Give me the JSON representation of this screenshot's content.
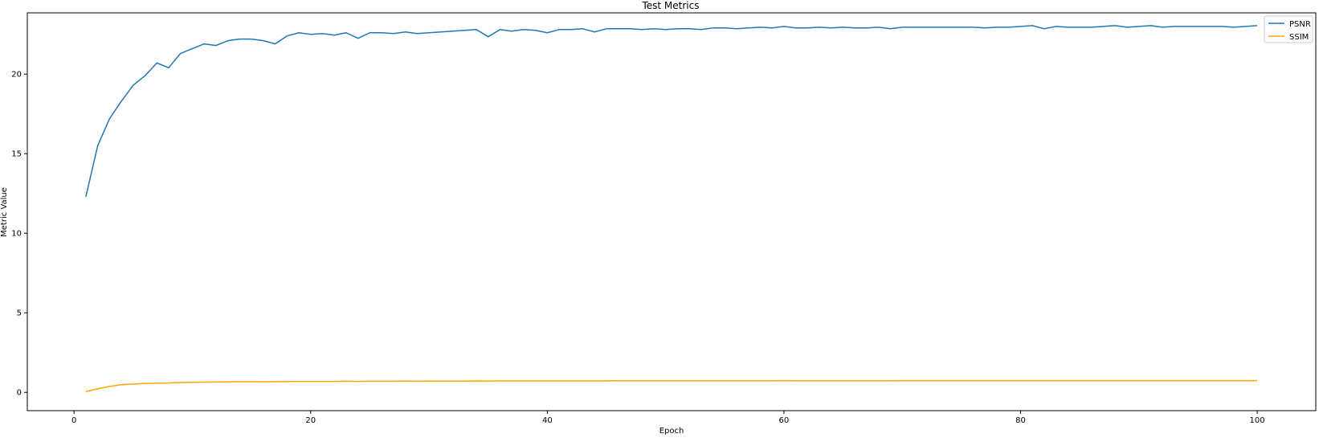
{
  "chart_data": {
    "type": "line",
    "title": "Test Metrics",
    "xlabel": "Epoch",
    "ylabel": "Metric Value",
    "xlim": [
      -3.95,
      104.95
    ],
    "ylim": [
      -1.15,
      23.85
    ],
    "xticks": [
      0,
      20,
      40,
      60,
      80,
      100
    ],
    "yticks": [
      0,
      5,
      10,
      15,
      20
    ],
    "grid": false,
    "legend_position": "top-right",
    "series": [
      {
        "name": "PSNR",
        "color": "#1f77b4",
        "x": [
          1,
          2,
          3,
          4,
          5,
          6,
          7,
          8,
          9,
          10,
          11,
          12,
          13,
          14,
          15,
          16,
          17,
          18,
          19,
          20,
          21,
          22,
          23,
          24,
          25,
          26,
          27,
          28,
          29,
          30,
          31,
          32,
          33,
          34,
          35,
          36,
          37,
          38,
          39,
          40,
          41,
          42,
          43,
          44,
          45,
          46,
          47,
          48,
          49,
          50,
          51,
          52,
          53,
          54,
          55,
          56,
          57,
          58,
          59,
          60,
          61,
          62,
          63,
          64,
          65,
          66,
          67,
          68,
          69,
          70,
          71,
          72,
          73,
          74,
          75,
          76,
          77,
          78,
          79,
          80,
          81,
          82,
          83,
          84,
          85,
          86,
          87,
          88,
          89,
          90,
          91,
          92,
          93,
          94,
          95,
          96,
          97,
          98,
          99,
          100
        ],
        "values": [
          12.3,
          15.5,
          17.2,
          18.3,
          19.3,
          19.9,
          20.7,
          20.4,
          21.3,
          21.6,
          21.9,
          21.8,
          22.1,
          22.2,
          22.2,
          22.1,
          21.9,
          22.4,
          22.6,
          22.5,
          22.55,
          22.45,
          22.6,
          22.25,
          22.6,
          22.6,
          22.55,
          22.65,
          22.55,
          22.6,
          22.65,
          22.7,
          22.75,
          22.8,
          22.35,
          22.8,
          22.7,
          22.8,
          22.75,
          22.6,
          22.8,
          22.8,
          22.85,
          22.65,
          22.85,
          22.85,
          22.85,
          22.8,
          22.85,
          22.8,
          22.85,
          22.85,
          22.8,
          22.9,
          22.9,
          22.85,
          22.9,
          22.95,
          22.9,
          23.0,
          22.9,
          22.9,
          22.95,
          22.9,
          22.95,
          22.9,
          22.9,
          22.95,
          22.85,
          22.95,
          22.95,
          22.95,
          22.95,
          22.95,
          22.95,
          22.95,
          22.9,
          22.95,
          22.95,
          23.0,
          23.05,
          22.85,
          23.0,
          22.95,
          22.95,
          22.95,
          23.0,
          23.05,
          22.95,
          23.0,
          23.05,
          22.95,
          23.0,
          23.0,
          23.0,
          23.0,
          23.0,
          22.95,
          23.0,
          23.05
        ]
      },
      {
        "name": "SSIM",
        "color": "#ffa500",
        "x": [
          1,
          2,
          3,
          4,
          5,
          6,
          7,
          8,
          9,
          10,
          11,
          12,
          13,
          14,
          15,
          16,
          17,
          18,
          19,
          20,
          21,
          22,
          23,
          24,
          25,
          26,
          27,
          28,
          29,
          30,
          31,
          32,
          33,
          34,
          35,
          36,
          37,
          38,
          39,
          40,
          41,
          42,
          43,
          44,
          45,
          46,
          47,
          48,
          49,
          50,
          51,
          52,
          53,
          54,
          55,
          56,
          57,
          58,
          59,
          60,
          61,
          62,
          63,
          64,
          65,
          66,
          67,
          68,
          69,
          70,
          71,
          72,
          73,
          74,
          75,
          76,
          77,
          78,
          79,
          80,
          81,
          82,
          83,
          84,
          85,
          86,
          87,
          88,
          89,
          90,
          91,
          92,
          93,
          94,
          95,
          96,
          97,
          98,
          99,
          100
        ],
        "values": [
          0.05,
          0.22,
          0.38,
          0.48,
          0.52,
          0.56,
          0.58,
          0.59,
          0.62,
          0.63,
          0.64,
          0.65,
          0.66,
          0.67,
          0.67,
          0.66,
          0.67,
          0.68,
          0.69,
          0.69,
          0.69,
          0.69,
          0.7,
          0.69,
          0.7,
          0.7,
          0.7,
          0.71,
          0.7,
          0.71,
          0.71,
          0.71,
          0.71,
          0.72,
          0.71,
          0.72,
          0.72,
          0.72,
          0.72,
          0.72,
          0.72,
          0.72,
          0.72,
          0.72,
          0.72,
          0.73,
          0.73,
          0.73,
          0.73,
          0.73,
          0.73,
          0.73,
          0.73,
          0.73,
          0.73,
          0.73,
          0.73,
          0.73,
          0.73,
          0.74,
          0.73,
          0.73,
          0.73,
          0.73,
          0.73,
          0.73,
          0.73,
          0.73,
          0.73,
          0.74,
          0.74,
          0.74,
          0.74,
          0.74,
          0.74,
          0.74,
          0.74,
          0.74,
          0.74,
          0.74,
          0.74,
          0.74,
          0.74,
          0.74,
          0.74,
          0.74,
          0.74,
          0.74,
          0.74,
          0.74,
          0.74,
          0.74,
          0.74,
          0.74,
          0.74,
          0.74,
          0.74,
          0.74,
          0.74,
          0.74
        ]
      }
    ]
  }
}
